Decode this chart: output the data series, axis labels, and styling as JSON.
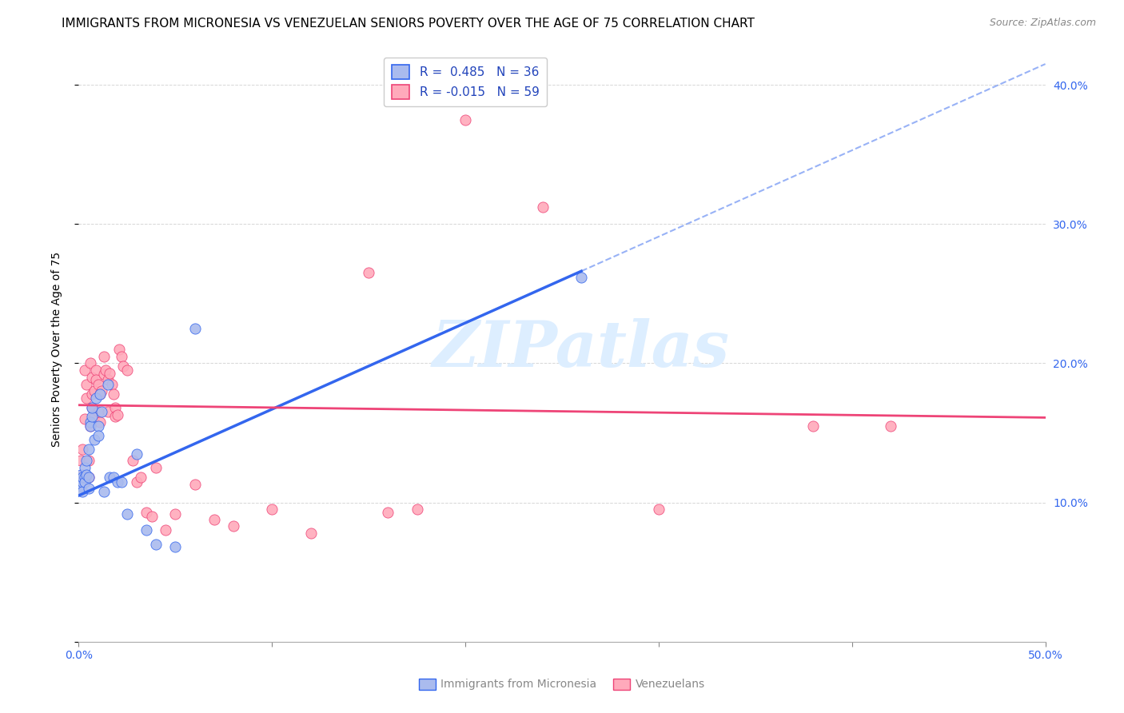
{
  "title": "IMMIGRANTS FROM MICRONESIA VS VENEZUELAN SENIORS POVERTY OVER THE AGE OF 75 CORRELATION CHART",
  "source": "Source: ZipAtlas.com",
  "ylabel": "Seniors Poverty Over the Age of 75",
  "xlim": [
    0.0,
    0.5
  ],
  "ylim": [
    0.0,
    0.42
  ],
  "x_ticks": [
    0.0,
    0.1,
    0.2,
    0.3,
    0.4,
    0.5
  ],
  "x_tick_labels": [
    "0.0%",
    "",
    "",
    "",
    "",
    "50.0%"
  ],
  "y_ticks": [
    0.0,
    0.1,
    0.2,
    0.3,
    0.4
  ],
  "y_tick_labels_right": [
    "",
    "10.0%",
    "20.0%",
    "30.0%",
    "40.0%"
  ],
  "watermark": "ZIPatlas",
  "blue_R": 0.485,
  "blue_N": 36,
  "pink_R": -0.015,
  "pink_N": 59,
  "blue_scatter_x": [
    0.001,
    0.001,
    0.002,
    0.002,
    0.002,
    0.003,
    0.003,
    0.003,
    0.004,
    0.004,
    0.005,
    0.005,
    0.005,
    0.006,
    0.006,
    0.007,
    0.007,
    0.008,
    0.009,
    0.01,
    0.01,
    0.011,
    0.012,
    0.013,
    0.015,
    0.016,
    0.018,
    0.02,
    0.022,
    0.025,
    0.03,
    0.035,
    0.04,
    0.05,
    0.06,
    0.26
  ],
  "blue_scatter_y": [
    0.12,
    0.112,
    0.115,
    0.108,
    0.118,
    0.125,
    0.118,
    0.115,
    0.13,
    0.12,
    0.138,
    0.118,
    0.11,
    0.158,
    0.155,
    0.162,
    0.168,
    0.145,
    0.175,
    0.155,
    0.148,
    0.178,
    0.165,
    0.108,
    0.185,
    0.118,
    0.118,
    0.115,
    0.115,
    0.092,
    0.135,
    0.08,
    0.07,
    0.068,
    0.225,
    0.262
  ],
  "pink_scatter_x": [
    0.001,
    0.002,
    0.002,
    0.003,
    0.003,
    0.004,
    0.004,
    0.005,
    0.005,
    0.006,
    0.006,
    0.007,
    0.007,
    0.007,
    0.008,
    0.008,
    0.009,
    0.009,
    0.01,
    0.01,
    0.011,
    0.011,
    0.012,
    0.013,
    0.013,
    0.014,
    0.015,
    0.015,
    0.016,
    0.017,
    0.018,
    0.019,
    0.019,
    0.02,
    0.021,
    0.022,
    0.023,
    0.025,
    0.028,
    0.03,
    0.032,
    0.035,
    0.038,
    0.04,
    0.045,
    0.05,
    0.06,
    0.07,
    0.08,
    0.1,
    0.12,
    0.15,
    0.16,
    0.175,
    0.2,
    0.24,
    0.3,
    0.38,
    0.42
  ],
  "pink_scatter_y": [
    0.13,
    0.12,
    0.138,
    0.16,
    0.195,
    0.175,
    0.185,
    0.118,
    0.13,
    0.2,
    0.155,
    0.178,
    0.19,
    0.168,
    0.18,
    0.162,
    0.195,
    0.188,
    0.185,
    0.165,
    0.178,
    0.158,
    0.18,
    0.192,
    0.205,
    0.195,
    0.188,
    0.165,
    0.193,
    0.185,
    0.178,
    0.168,
    0.162,
    0.163,
    0.21,
    0.205,
    0.198,
    0.195,
    0.13,
    0.115,
    0.118,
    0.093,
    0.09,
    0.125,
    0.08,
    0.092,
    0.113,
    0.088,
    0.083,
    0.095,
    0.078,
    0.265,
    0.093,
    0.095,
    0.375,
    0.312,
    0.095,
    0.155,
    0.155
  ],
  "blue_line_color": "#3366EE",
  "pink_line_color": "#EE4477",
  "blue_scatter_color": "#AABBEE",
  "pink_scatter_color": "#FFAABB",
  "grid_color": "#CCCCCC",
  "background_color": "#FFFFFF",
  "watermark_color": "#DDEEFF",
  "title_fontsize": 11,
  "source_fontsize": 9,
  "legend_fontsize": 11,
  "axis_fontsize": 10,
  "blue_line_intercept": 0.105,
  "blue_line_slope": 0.62,
  "pink_line_intercept": 0.17,
  "pink_line_slope": -0.018
}
